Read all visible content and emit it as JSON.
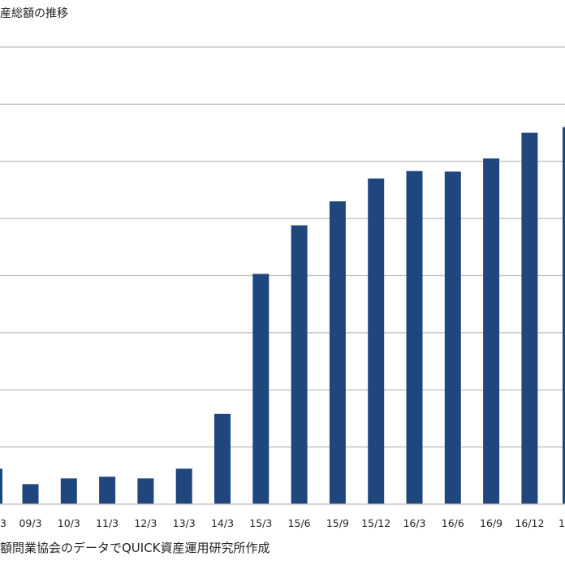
{
  "chart_data": {
    "type": "bar",
    "title": "産総額の推移",
    "source_note": "額問業協会のデータでQUICK資産運用研究所作成",
    "categories": [
      "09/3",
      "10/3",
      "11/3",
      "12/3",
      "13/3",
      "14/3",
      "15/3",
      "15/6",
      "15/9",
      "15/12",
      "16/3",
      "16/6",
      "16/9",
      "16/12"
    ],
    "partial_edge_labels": {
      "left": "3",
      "right": "1"
    },
    "series": [
      {
        "values": [
          0.35,
          0.45,
          0.48,
          0.45,
          0.62,
          1.58,
          4.03,
          4.88,
          5.3,
          5.7,
          5.83,
          5.82,
          6.05,
          6.5
        ]
      }
    ],
    "partial_edge_values": {
      "left": 0.62,
      "right": 6.6
    },
    "ylim": [
      0,
      8
    ],
    "gridlines": true,
    "y_tick_labels_visible": false,
    "bar_color": "#1f477d",
    "grid_color": "#bdbdbd"
  }
}
